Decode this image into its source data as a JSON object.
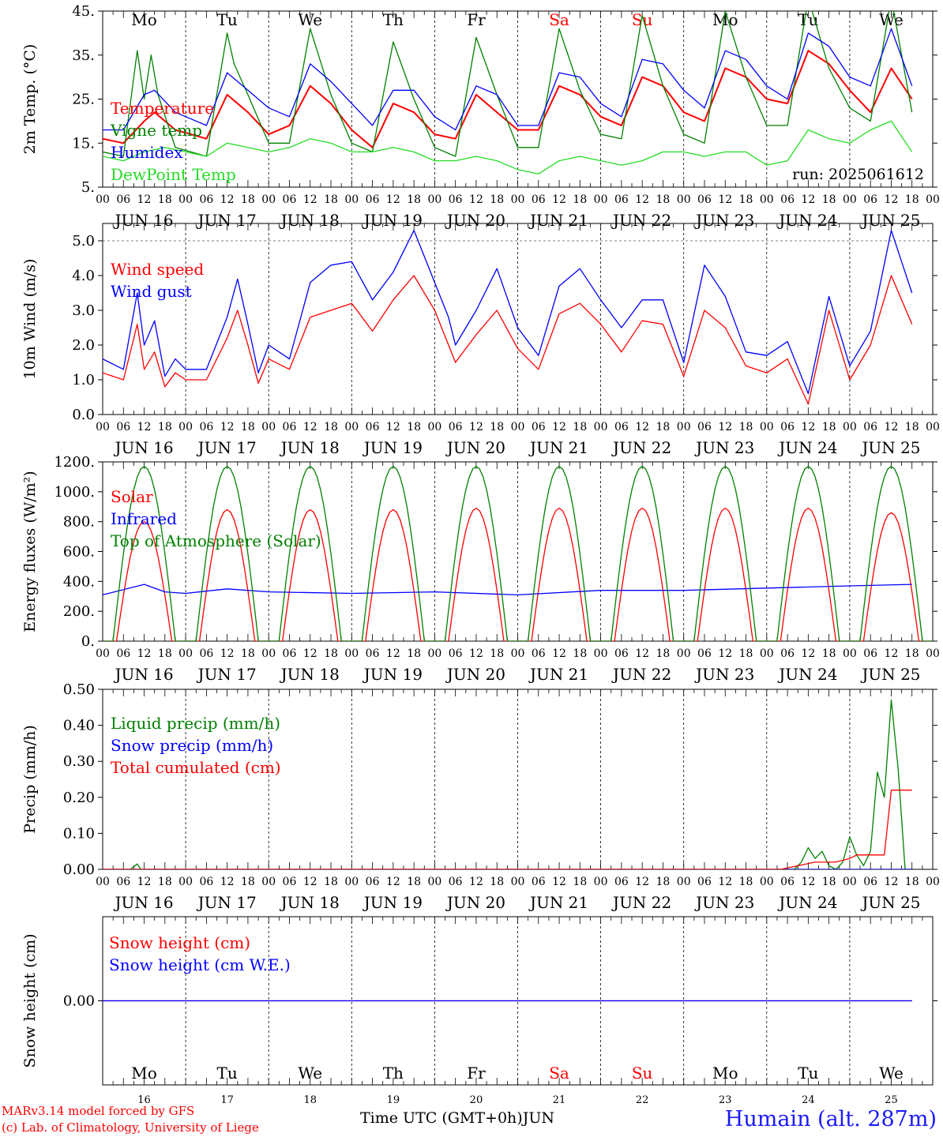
{
  "run_label": "run: 2025061612",
  "days": [
    "16",
    "17",
    "18",
    "19",
    "20",
    "21",
    "22",
    "23",
    "24",
    "25"
  ],
  "month": "JUN",
  "weekdays": [
    {
      "label": "Mo",
      "color": "#000000"
    },
    {
      "label": "Tu",
      "color": "#000000"
    },
    {
      "label": "We",
      "color": "#000000"
    },
    {
      "label": "Th",
      "color": "#000000"
    },
    {
      "label": "Fr",
      "color": "#000000"
    },
    {
      "label": "Sa",
      "color": "#ff0000"
    },
    {
      "label": "Su",
      "color": "#ff0000"
    },
    {
      "label": "Mo",
      "color": "#000000"
    },
    {
      "label": "Tu",
      "color": "#000000"
    },
    {
      "label": "We",
      "color": "#000000"
    }
  ],
  "hour_ticks": [
    "00",
    "06",
    "12",
    "18"
  ],
  "footer": {
    "credit_line1": "MARv3.14 model forced by GFS",
    "credit_line2": "(c) Lab. of Climatology, University of Liege",
    "axis_title": "Time UTC (GMT+0h)",
    "month_label": "JUN",
    "station": "Humain (alt. 287m)"
  },
  "colors": {
    "red": "#ff0000",
    "green": "#008000",
    "blue": "#0000ff",
    "lightgreen": "#22dd22"
  },
  "chart_data": [
    {
      "type": "line",
      "ylabel": "2m Temp. (°C)",
      "ylim": [
        5,
        45
      ],
      "yticks": [
        "5.",
        "15.",
        "25.",
        "35.",
        "45."
      ],
      "x_unit": "hours since 2025-06-16 00 UTC",
      "series": [
        {
          "name": "Temperature",
          "color": "#ff0000",
          "x": [
            0,
            6,
            12,
            15,
            21,
            30,
            36,
            42,
            48,
            54,
            60,
            66,
            72,
            78,
            84,
            90,
            96,
            102,
            108,
            114,
            120,
            126,
            132,
            138,
            144,
            150,
            156,
            162,
            168,
            174,
            180,
            186,
            192,
            198,
            204,
            210,
            216,
            222,
            228,
            234
          ],
          "y": [
            16,
            15,
            20,
            22,
            18,
            16,
            26,
            22,
            17,
            19,
            28,
            24,
            18,
            14,
            24,
            22,
            17,
            16,
            26,
            22,
            18,
            18,
            28,
            26,
            21,
            19,
            30,
            28,
            22,
            20,
            32,
            30,
            25,
            24,
            36,
            33,
            27,
            22,
            32,
            25
          ]
        },
        {
          "name": "Vigne temp",
          "color": "#008000",
          "x": [
            0,
            6,
            10,
            12,
            14,
            16,
            21,
            30,
            36,
            38,
            42,
            48,
            54,
            60,
            66,
            72,
            78,
            84,
            90,
            96,
            102,
            108,
            114,
            120,
            126,
            132,
            138,
            144,
            150,
            156,
            162,
            168,
            174,
            180,
            186,
            192,
            198,
            204,
            210,
            216,
            222,
            228,
            234
          ],
          "y": [
            13,
            12,
            36,
            25,
            35,
            26,
            14,
            12,
            40,
            33,
            26,
            15,
            15,
            41,
            26,
            15,
            13,
            38,
            25,
            14,
            12,
            39,
            26,
            14,
            14,
            41,
            27,
            17,
            16,
            44,
            28,
            17,
            15,
            45,
            30,
            19,
            19,
            48,
            32,
            23,
            20,
            48,
            22
          ]
        },
        {
          "name": "Humidex",
          "color": "#0000ff",
          "x": [
            0,
            6,
            12,
            15,
            21,
            30,
            36,
            42,
            48,
            54,
            60,
            66,
            72,
            78,
            84,
            90,
            96,
            102,
            108,
            114,
            120,
            126,
            132,
            138,
            144,
            150,
            156,
            162,
            168,
            174,
            180,
            186,
            192,
            198,
            204,
            210,
            216,
            222,
            228,
            234
          ],
          "y": [
            18,
            18,
            26,
            27,
            22,
            19,
            31,
            27,
            23,
            21,
            33,
            29,
            24,
            19,
            27,
            27,
            21,
            18,
            28,
            26,
            19,
            19,
            31,
            30,
            24,
            21,
            34,
            33,
            27,
            23,
            36,
            34,
            28,
            25,
            40,
            37,
            30,
            28,
            41,
            28
          ]
        },
        {
          "name": "DewPoint Temp",
          "color": "#22dd22",
          "x": [
            0,
            6,
            12,
            18,
            24,
            30,
            36,
            42,
            48,
            54,
            60,
            66,
            72,
            78,
            84,
            90,
            96,
            102,
            108,
            114,
            120,
            126,
            132,
            138,
            144,
            150,
            156,
            162,
            168,
            174,
            180,
            186,
            192,
            198,
            204,
            210,
            216,
            222,
            228,
            234
          ],
          "y": [
            12,
            11,
            13,
            14,
            13,
            12,
            15,
            14,
            13,
            14,
            16,
            15,
            13,
            13,
            14,
            13,
            11,
            11,
            12,
            11,
            9,
            8,
            11,
            12,
            11,
            10,
            11,
            13,
            13,
            12,
            13,
            13,
            10,
            11,
            18,
            16,
            15,
            18,
            20,
            13
          ]
        }
      ]
    },
    {
      "type": "line",
      "ylabel": "10m Wind (m/s)",
      "ylim": [
        0,
        5.5
      ],
      "yticks": [
        "0.0",
        "1.0",
        "2.0",
        "3.0",
        "4.0",
        "5.0"
      ],
      "x_unit": "hours since 2025-06-16 00 UTC",
      "series": [
        {
          "name": "Wind speed",
          "color": "#ff0000",
          "x": [
            0,
            6,
            10,
            12,
            15,
            18,
            21,
            24,
            30,
            36,
            39,
            42,
            45,
            48,
            54,
            60,
            66,
            72,
            78,
            84,
            90,
            96,
            100,
            102,
            108,
            114,
            120,
            126,
            132,
            138,
            144,
            150,
            156,
            162,
            168,
            174,
            180,
            186,
            192,
            198,
            204,
            210,
            216,
            222,
            228,
            234
          ],
          "y": [
            1.2,
            1.0,
            2.6,
            1.3,
            1.8,
            0.8,
            1.2,
            1.0,
            1.0,
            2.2,
            3.0,
            2.0,
            0.9,
            1.6,
            1.3,
            2.8,
            3.0,
            3.2,
            2.4,
            3.3,
            4.0,
            3.0,
            2.0,
            1.5,
            2.3,
            3.0,
            1.9,
            1.3,
            2.9,
            3.2,
            2.6,
            1.8,
            2.7,
            2.6,
            1.1,
            3.0,
            2.5,
            1.4,
            1.2,
            1.6,
            0.3,
            3.0,
            1.0,
            2.0,
            4.0,
            2.6
          ]
        },
        {
          "name": "Wind gust",
          "color": "#0000ff",
          "x": [
            0,
            6,
            10,
            12,
            15,
            18,
            21,
            24,
            30,
            36,
            39,
            42,
            45,
            48,
            54,
            60,
            66,
            72,
            78,
            84,
            90,
            96,
            100,
            102,
            108,
            114,
            120,
            126,
            132,
            138,
            144,
            150,
            156,
            162,
            168,
            174,
            180,
            186,
            192,
            198,
            204,
            210,
            216,
            222,
            228,
            234
          ],
          "y": [
            1.6,
            1.3,
            3.5,
            2.0,
            2.7,
            1.1,
            1.6,
            1.3,
            1.3,
            2.8,
            3.9,
            2.6,
            1.2,
            2.0,
            1.6,
            3.8,
            4.3,
            4.4,
            3.3,
            4.1,
            5.3,
            3.8,
            2.8,
            2.0,
            3.0,
            4.2,
            2.5,
            1.7,
            3.7,
            4.2,
            3.3,
            2.5,
            3.3,
            3.3,
            1.5,
            4.3,
            3.4,
            1.8,
            1.7,
            2.1,
            0.6,
            3.4,
            1.4,
            2.4,
            5.3,
            3.5
          ]
        }
      ]
    },
    {
      "type": "line",
      "ylabel": "Energy fluxes (W/m²)",
      "ylim": [
        0,
        1200
      ],
      "yticks": [
        "0.",
        "200.",
        "400.",
        "600.",
        "800.",
        "1000.",
        "1200."
      ],
      "series": [
        {
          "name": "Solar",
          "color": "#ff0000",
          "daily_peaks": [
            800,
            880,
            880,
            880,
            890,
            890,
            890,
            890,
            890,
            860
          ]
        },
        {
          "name": "Infrared",
          "color": "#0000ff",
          "x": [
            0,
            12,
            18,
            24,
            36,
            48,
            72,
            96,
            120,
            144,
            168,
            192,
            216,
            234
          ],
          "y": [
            310,
            380,
            330,
            320,
            350,
            330,
            320,
            330,
            310,
            340,
            340,
            355,
            370,
            380
          ]
        },
        {
          "name": "Top of Atmosphere (Solar)",
          "color": "#008000",
          "daily_peak": 1170
        }
      ]
    },
    {
      "type": "line",
      "ylabel": "Precip (mm/h)",
      "ylim": [
        0,
        0.5
      ],
      "yticks": [
        "0.00",
        "0.10",
        "0.20",
        "0.30",
        "0.40",
        "0.50"
      ],
      "series": [
        {
          "name": "Liquid precip (mm/h)",
          "color": "#008000",
          "x": [
            0,
            8,
            10,
            11,
            12,
            200,
            202,
            204,
            206,
            208,
            210,
            212,
            214,
            216,
            218,
            220,
            222,
            224,
            226,
            228,
            230,
            232,
            234
          ],
          "y": [
            0,
            0,
            0.015,
            0,
            0,
            0,
            0.02,
            0.06,
            0.03,
            0.05,
            0.01,
            0,
            0.02,
            0.09,
            0.04,
            0.01,
            0.05,
            0.27,
            0.2,
            0.47,
            0.28,
            0,
            0
          ]
        },
        {
          "name": "Snow precip (mm/h)",
          "color": "#0000ff",
          "x": [
            0,
            234
          ],
          "y": [
            0,
            0
          ]
        },
        {
          "name": "Total cumulated (cm)",
          "color": "#ff0000",
          "x": [
            0,
            196,
            206,
            212,
            216,
            218,
            226,
            228,
            234
          ],
          "y": [
            0,
            0,
            0.02,
            0.02,
            0.03,
            0.04,
            0.04,
            0.22,
            0.22
          ]
        }
      ]
    },
    {
      "type": "line",
      "ylabel": "Snow height (cm)",
      "yticks": [
        "0.00"
      ],
      "series": [
        {
          "name": "Snow height (cm)",
          "color": "#ff0000",
          "x": [
            0,
            234
          ],
          "y": [
            0,
            0
          ]
        },
        {
          "name": "Snow height (cm W.E.)",
          "color": "#0000ff",
          "x": [
            0,
            234
          ],
          "y": [
            0,
            0
          ]
        }
      ]
    }
  ]
}
